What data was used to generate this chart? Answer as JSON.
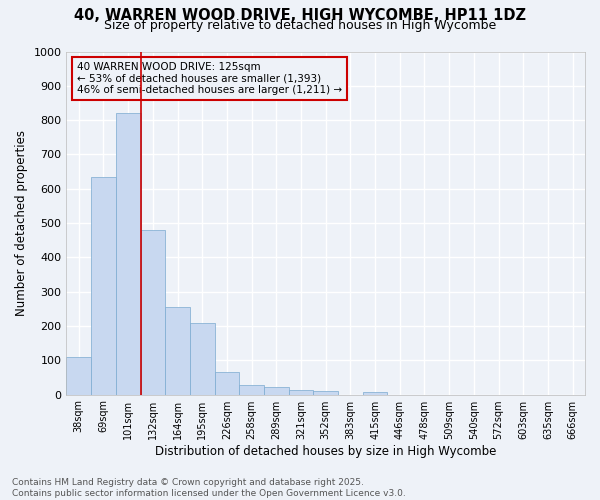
{
  "title_line1": "40, WARREN WOOD DRIVE, HIGH WYCOMBE, HP11 1DZ",
  "title_line2": "Size of property relative to detached houses in High Wycombe",
  "xlabel": "Distribution of detached houses by size in High Wycombe",
  "ylabel": "Number of detached properties",
  "bar_color": "#c8d8f0",
  "bar_edge_color": "#7aaad0",
  "categories": [
    "38sqm",
    "69sqm",
    "101sqm",
    "132sqm",
    "164sqm",
    "195sqm",
    "226sqm",
    "258sqm",
    "289sqm",
    "321sqm",
    "352sqm",
    "383sqm",
    "415sqm",
    "446sqm",
    "478sqm",
    "509sqm",
    "540sqm",
    "572sqm",
    "603sqm",
    "635sqm",
    "666sqm"
  ],
  "values": [
    110,
    635,
    820,
    480,
    255,
    210,
    67,
    27,
    22,
    14,
    10,
    0,
    8,
    0,
    0,
    0,
    0,
    0,
    0,
    0,
    0
  ],
  "ylim": [
    0,
    1000
  ],
  "yticks": [
    0,
    100,
    200,
    300,
    400,
    500,
    600,
    700,
    800,
    900,
    1000
  ],
  "vline_color": "#cc0000",
  "vline_x_index": 2,
  "annotation_text": "40 WARREN WOOD DRIVE: 125sqm\n← 53% of detached houses are smaller (1,393)\n46% of semi-detached houses are larger (1,211) →",
  "footer_text": "Contains HM Land Registry data © Crown copyright and database right 2025.\nContains public sector information licensed under the Open Government Licence v3.0.",
  "background_color": "#eef2f8",
  "grid_color": "#ffffff"
}
